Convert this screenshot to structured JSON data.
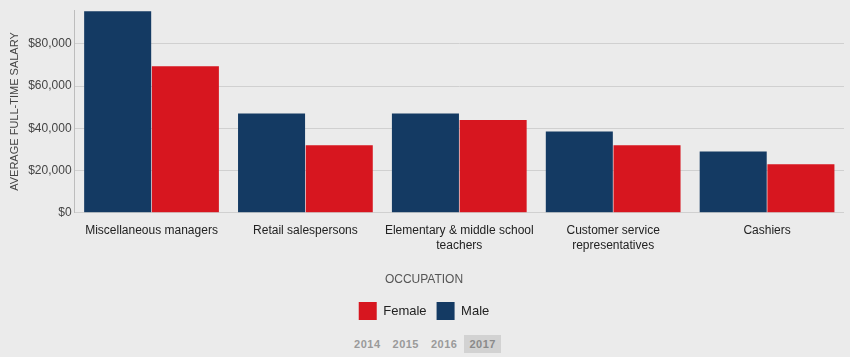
{
  "chart_data": {
    "type": "bar",
    "categories": [
      "Miscellaneous managers",
      "Retail salespersons",
      "Elementary & middle school teachers",
      "Customer service representatives",
      "Cashiers"
    ],
    "series": [
      {
        "name": "Male",
        "color": "#143a63",
        "values": [
          95500,
          47000,
          47000,
          38500,
          29000
        ]
      },
      {
        "name": "Female",
        "color": "#d7161f",
        "values": [
          69500,
          32000,
          44000,
          32000,
          23000
        ]
      }
    ],
    "ylabel": "AVERAGE FULL-TIME SALARY",
    "xlabel": "OCCUPATION",
    "ylim": [
      0,
      96000
    ],
    "yticks": [
      {
        "value": 0,
        "label": "$0"
      },
      {
        "value": 20000,
        "label": "$20,000"
      },
      {
        "value": 40000,
        "label": "$40,000"
      },
      {
        "value": 60000,
        "label": "$60,000"
      },
      {
        "value": 80000,
        "label": "$80,000"
      }
    ],
    "grid": true,
    "legend": "bottom",
    "year_buttons": [
      {
        "label": "2014"
      },
      {
        "label": "2015"
      },
      {
        "label": "2016"
      },
      {
        "label": "2017",
        "active": true
      }
    ]
  }
}
